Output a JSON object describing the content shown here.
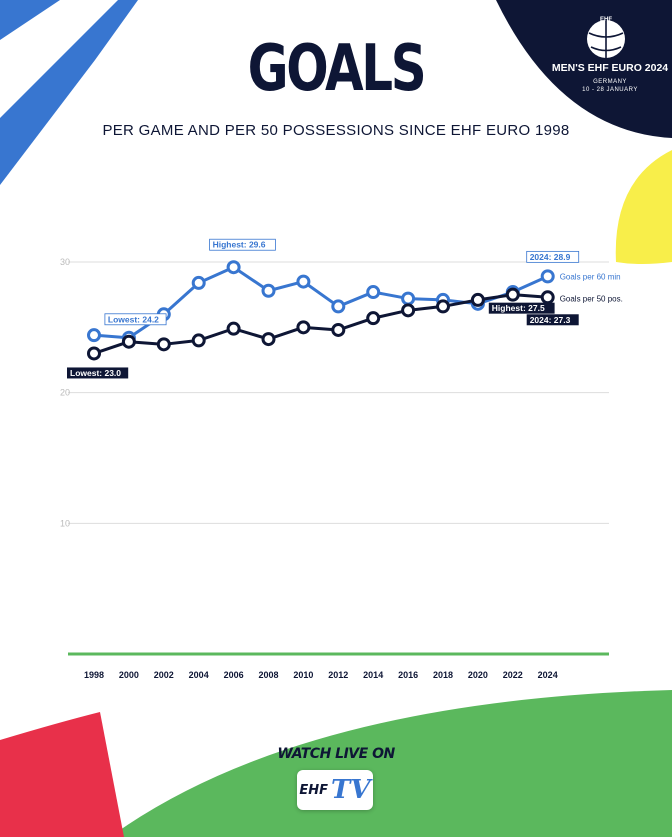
{
  "header": {
    "title": "GOALS",
    "subtitle": "PER GAME AND PER 50 POSSESSIONS SINCE EHF EURO 1998"
  },
  "brand": {
    "logo_icon": "handball-icon",
    "name": "MEN'S EHF EURO 2024",
    "host": "GERMANY",
    "dates": "10 - 28 JANUARY"
  },
  "footer": {
    "watch_label": "WATCH LIVE ON",
    "tv_ehf": "EHF",
    "tv_tv": "TV"
  },
  "colors": {
    "navy": "#0e1635",
    "blue": "#3876d0",
    "green": "#5bb85d",
    "yellow": "#f8ee4a",
    "red": "#e8304a",
    "grid": "#dddddd"
  },
  "chart_data": {
    "type": "line",
    "x": [
      "1998",
      "2000",
      "2002",
      "2004",
      "2006",
      "2008",
      "2010",
      "2012",
      "2014",
      "2016",
      "2018",
      "2020",
      "2022",
      "2024"
    ],
    "ylim": [
      0,
      30
    ],
    "yticks": [
      10,
      20,
      30
    ],
    "grid": true,
    "series": [
      {
        "name": "Goals per 60 min",
        "color": "#3876d0",
        "values": [
          24.4,
          24.2,
          26.0,
          28.4,
          29.6,
          27.8,
          28.5,
          26.6,
          27.7,
          27.2,
          27.1,
          26.8,
          27.7,
          28.9
        ]
      },
      {
        "name": "Goals per 50 pos.",
        "color": "#0e1635",
        "values": [
          23.0,
          23.9,
          23.7,
          24.0,
          24.9,
          24.1,
          25.0,
          24.8,
          25.7,
          26.3,
          26.6,
          27.1,
          27.5,
          27.3
        ]
      }
    ],
    "annotations": [
      {
        "series": 0,
        "index": 1,
        "text": "Lowest: 24.2",
        "style": "light"
      },
      {
        "series": 0,
        "index": 4,
        "text": "Highest: 29.6",
        "style": "light"
      },
      {
        "series": 0,
        "index": 13,
        "text": "2024: 28.9",
        "style": "light"
      },
      {
        "series": 1,
        "index": 0,
        "text": "Lowest: 23.0",
        "style": "dark"
      },
      {
        "series": 1,
        "index": 12,
        "text": "Highest: 27.5",
        "style": "dark"
      },
      {
        "series": 1,
        "index": 13,
        "text": "2024: 27.3",
        "style": "dark"
      }
    ]
  }
}
